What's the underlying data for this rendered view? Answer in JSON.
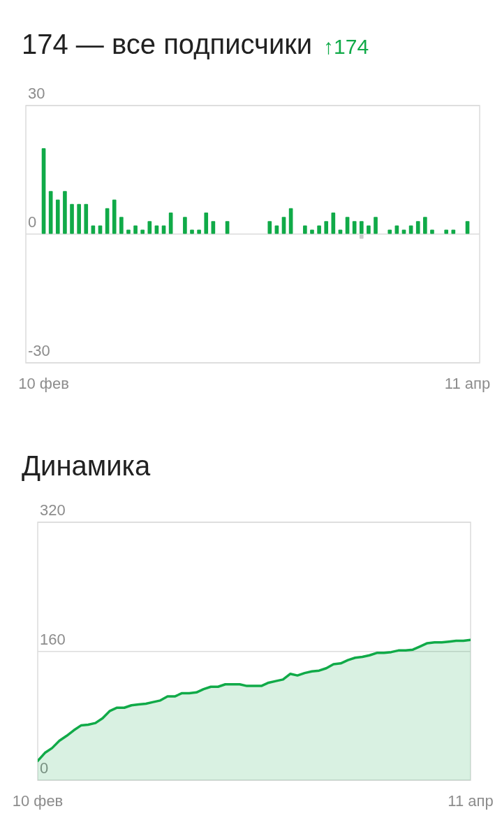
{
  "chart_data": [
    {
      "type": "bar",
      "title": "174 — все подписчики",
      "subtitle": "↑174",
      "stacked": true,
      "grid": "y",
      "ylim": [
        -30,
        30
      ],
      "yticks": [
        -30,
        0,
        30
      ],
      "categories": [
        "10 фев",
        null,
        null,
        null,
        null,
        null,
        null,
        null,
        null,
        null,
        null,
        null,
        null,
        null,
        null,
        null,
        null,
        null,
        null,
        null,
        null,
        null,
        null,
        null,
        null,
        null,
        null,
        null,
        null,
        null,
        null,
        null,
        null,
        null,
        null,
        null,
        null,
        null,
        null,
        null,
        null,
        null,
        null,
        null,
        null,
        null,
        null,
        null,
        null,
        null,
        null,
        null,
        null,
        null,
        null,
        null,
        null,
        null,
        null,
        null,
        "11 апр"
      ],
      "series": [
        {
          "color": "#10aa48",
          "values": [
            20,
            10,
            8,
            10,
            7,
            7,
            7,
            2,
            2,
            6,
            8,
            4,
            1,
            2,
            1,
            3,
            2,
            2,
            5,
            0,
            4,
            1,
            1,
            5,
            3,
            0,
            3,
            0,
            0,
            0,
            0,
            0,
            3,
            2,
            4,
            6,
            0,
            2,
            1,
            2,
            3,
            5,
            1,
            4,
            3,
            3,
            2,
            4,
            0,
            1,
            2,
            1,
            2,
            3,
            4,
            1,
            0,
            1,
            1,
            0,
            3
          ]
        },
        {
          "color": "#c8c8c8",
          "values": [
            0,
            0,
            0,
            0,
            0,
            0,
            0,
            0,
            0,
            0,
            0,
            0,
            0,
            0,
            0,
            0,
            0,
            0,
            0,
            0,
            0,
            0,
            0,
            0,
            0,
            0,
            0,
            0,
            0,
            0,
            0,
            0,
            0,
            0,
            0,
            0,
            0,
            0,
            0,
            0,
            0,
            0,
            0,
            0,
            0,
            -1,
            0,
            0,
            0,
            0,
            0,
            0,
            0,
            0,
            0,
            0,
            0,
            0,
            0,
            0,
            0
          ]
        }
      ]
    },
    {
      "type": "area",
      "title": "Динамика",
      "grid": "y",
      "ylim": [
        0,
        320
      ],
      "yticks": [
        0,
        160,
        320
      ],
      "categories": [
        "10 фев",
        null,
        null,
        null,
        null,
        null,
        null,
        null,
        null,
        null,
        null,
        null,
        null,
        null,
        null,
        null,
        null,
        null,
        null,
        null,
        null,
        null,
        null,
        null,
        null,
        null,
        null,
        null,
        null,
        null,
        null,
        null,
        null,
        null,
        null,
        null,
        null,
        null,
        null,
        null,
        null,
        null,
        null,
        null,
        null,
        null,
        null,
        null,
        null,
        null,
        null,
        null,
        null,
        null,
        null,
        null,
        null,
        null,
        null,
        null,
        "11 апр"
      ],
      "series": [
        {
          "color": "#10aa48",
          "values": [
            24,
            34,
            40,
            49,
            55,
            62,
            68,
            69,
            71,
            77,
            86,
            90,
            90,
            93,
            94,
            95,
            97,
            99,
            104,
            104,
            108,
            108,
            109,
            113,
            116,
            116,
            119,
            119,
            119,
            117,
            117,
            117,
            121,
            123,
            125,
            132,
            130,
            133,
            135,
            136,
            139,
            144,
            145,
            149,
            152,
            153,
            155,
            158,
            158,
            159,
            161,
            161,
            162,
            166,
            170,
            171,
            171,
            172,
            173,
            173,
            174
          ]
        }
      ]
    }
  ]
}
